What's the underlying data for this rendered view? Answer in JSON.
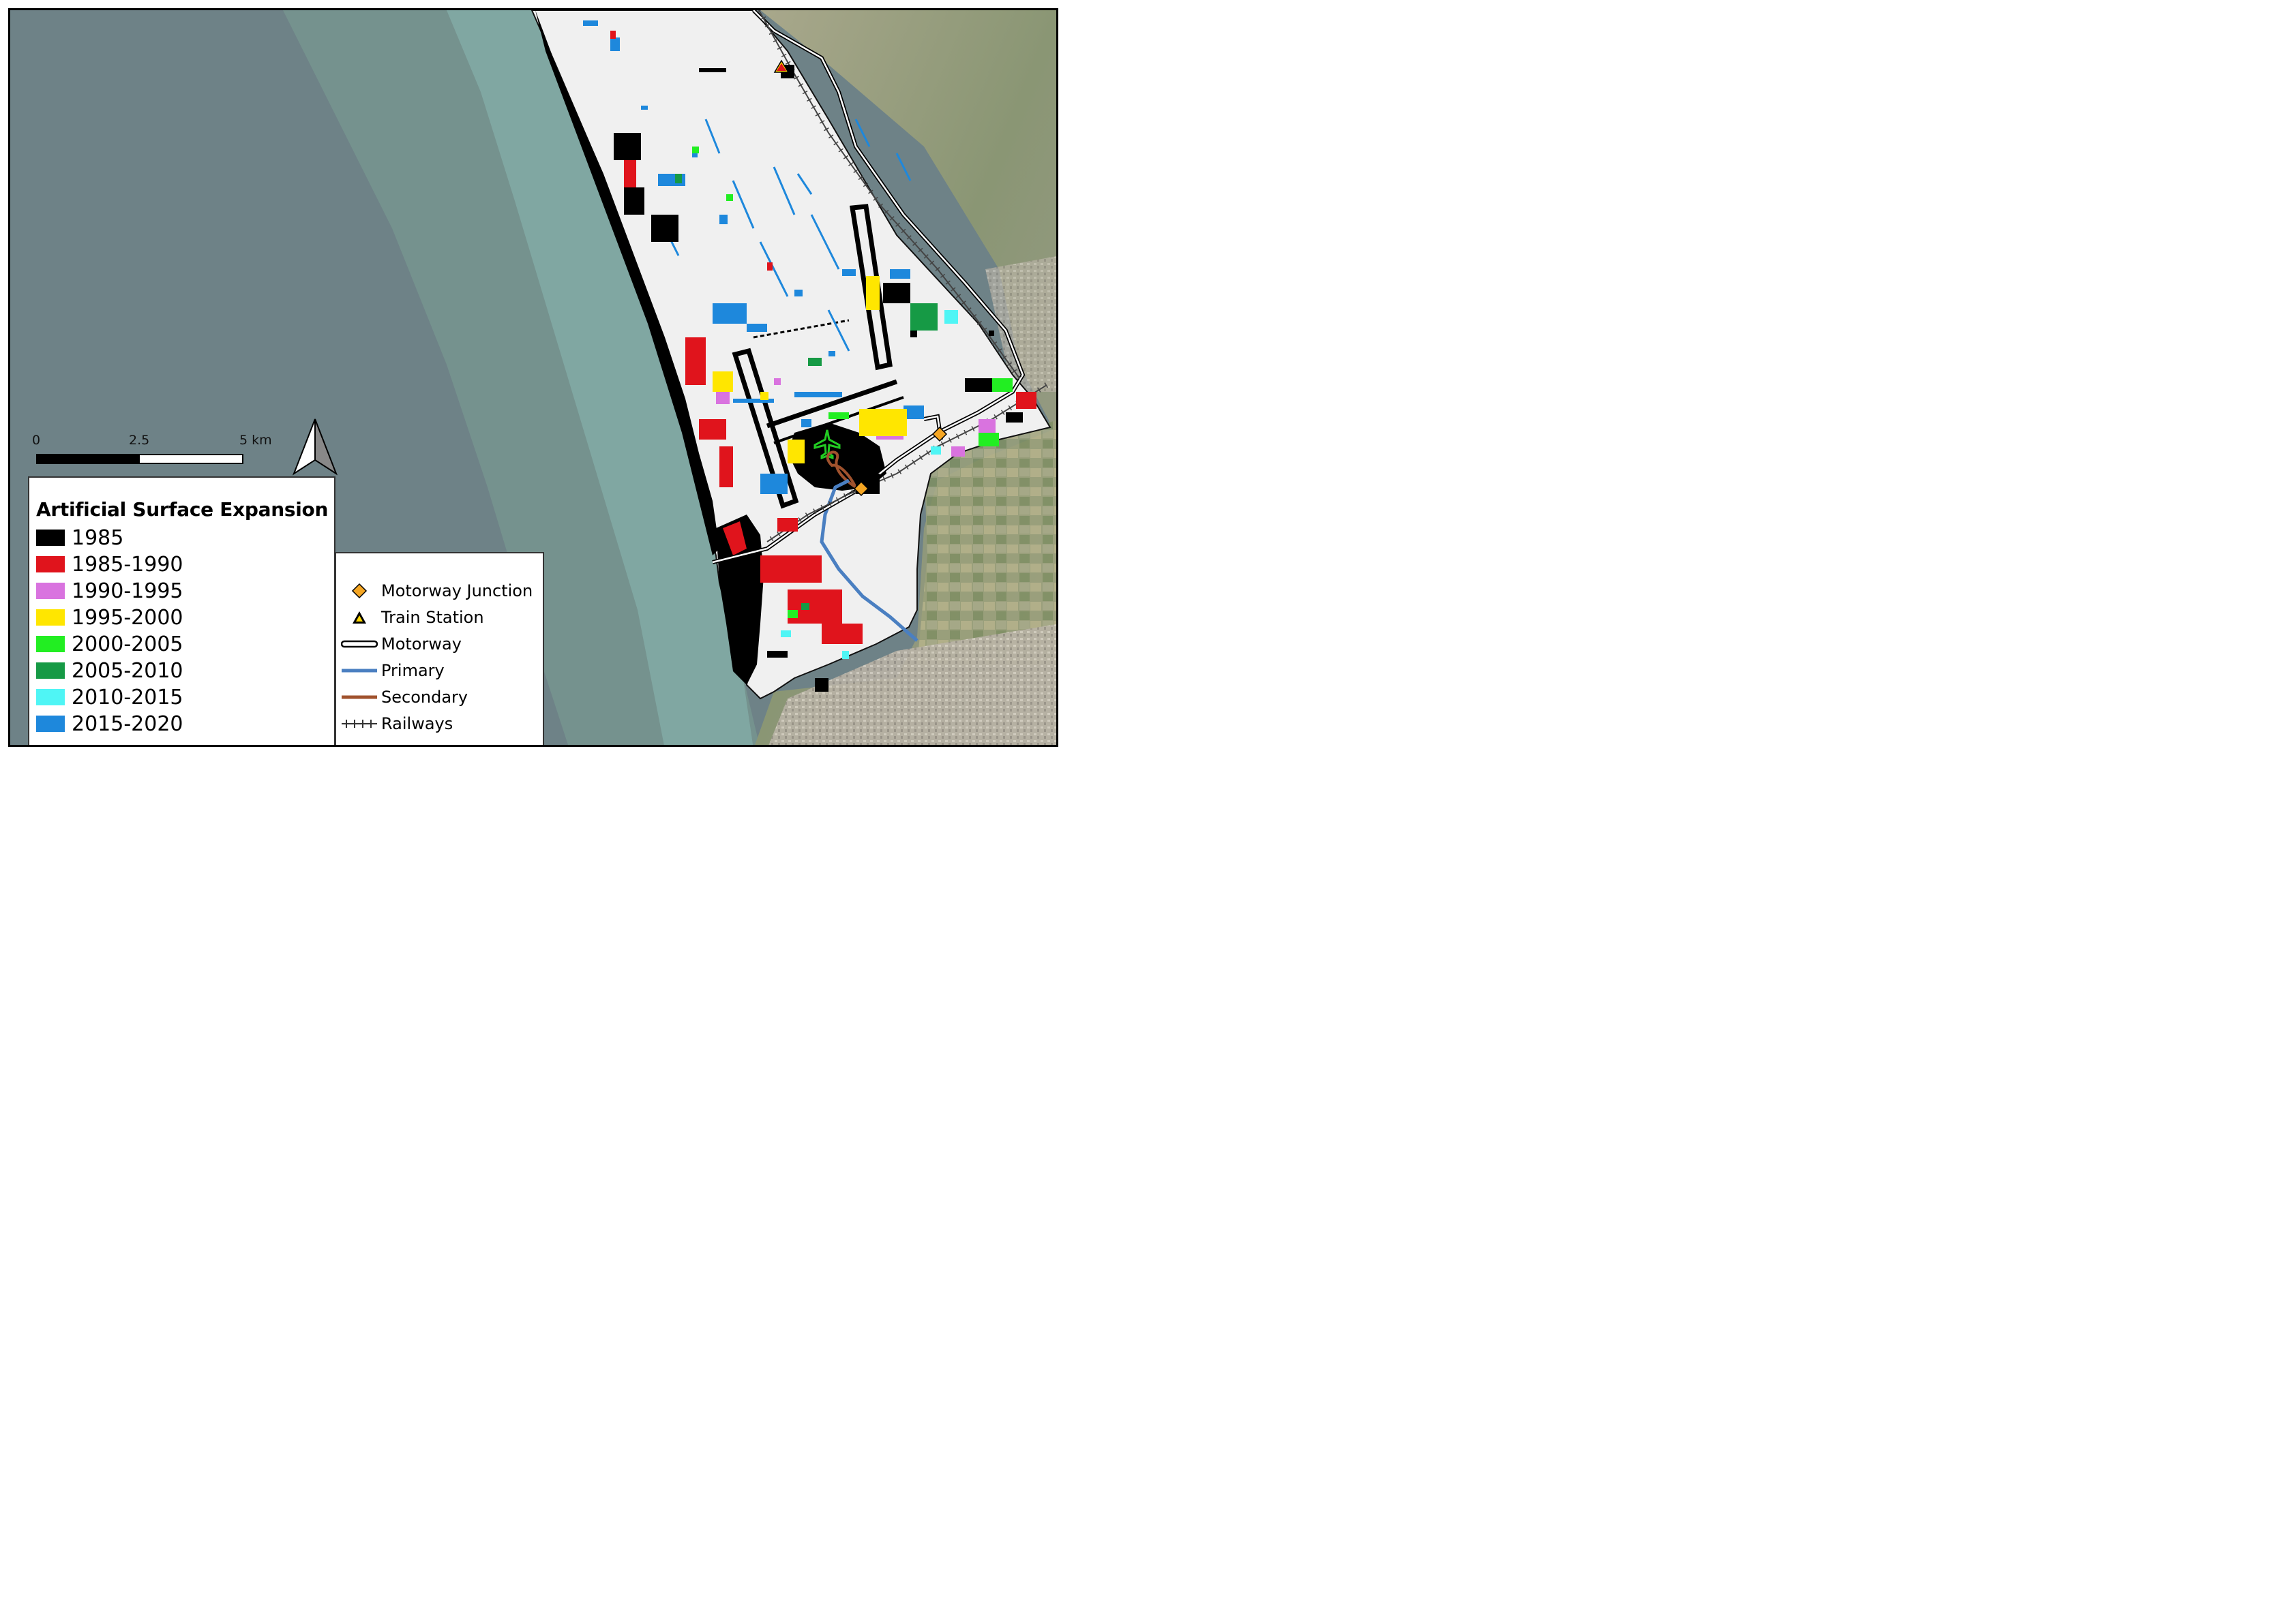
{
  "scale_bar": {
    "ticks": [
      "0",
      "2.5",
      "5 km"
    ]
  },
  "legend_years": {
    "title": "Artificial Surface Expansion",
    "items": [
      {
        "label": "1985",
        "color": "#000000"
      },
      {
        "label": "1985-1990",
        "color": "#e0141c"
      },
      {
        "label": "1990-1995",
        "color": "#d973df"
      },
      {
        "label": "1995-2000",
        "color": "#ffe600"
      },
      {
        "label": "2000-2005",
        "color": "#22ee22"
      },
      {
        "label": "2005-2010",
        "color": "#169a45"
      },
      {
        "label": "2010-2015",
        "color": "#4ff5f5"
      },
      {
        "label": "2015-2020",
        "color": "#1e88dc"
      }
    ]
  },
  "legend_infra": {
    "items": [
      {
        "label": "Motorway Junction",
        "symbol": "diamond-icon",
        "color": "#f5a623"
      },
      {
        "label": "Train Station",
        "symbol": "triangle-icon",
        "color": "#ffd700"
      },
      {
        "label": "Motorway",
        "symbol": "double-line-icon",
        "color": "#000000"
      },
      {
        "label": "Primary",
        "symbol": "line-icon",
        "color": "#4a7fc1"
      },
      {
        "label": "Secondary",
        "symbol": "line-icon",
        "color": "#a0522d"
      },
      {
        "label": "Railways",
        "symbol": "railway-icon",
        "color": "#333333"
      }
    ]
  },
  "map_colors": {
    "sea": "#6e8287",
    "shallow_water": "#7fa3a0",
    "land_aerial": "#8f9a7a",
    "study_area": "#f0f0f0",
    "airport_runway": "#000000"
  }
}
